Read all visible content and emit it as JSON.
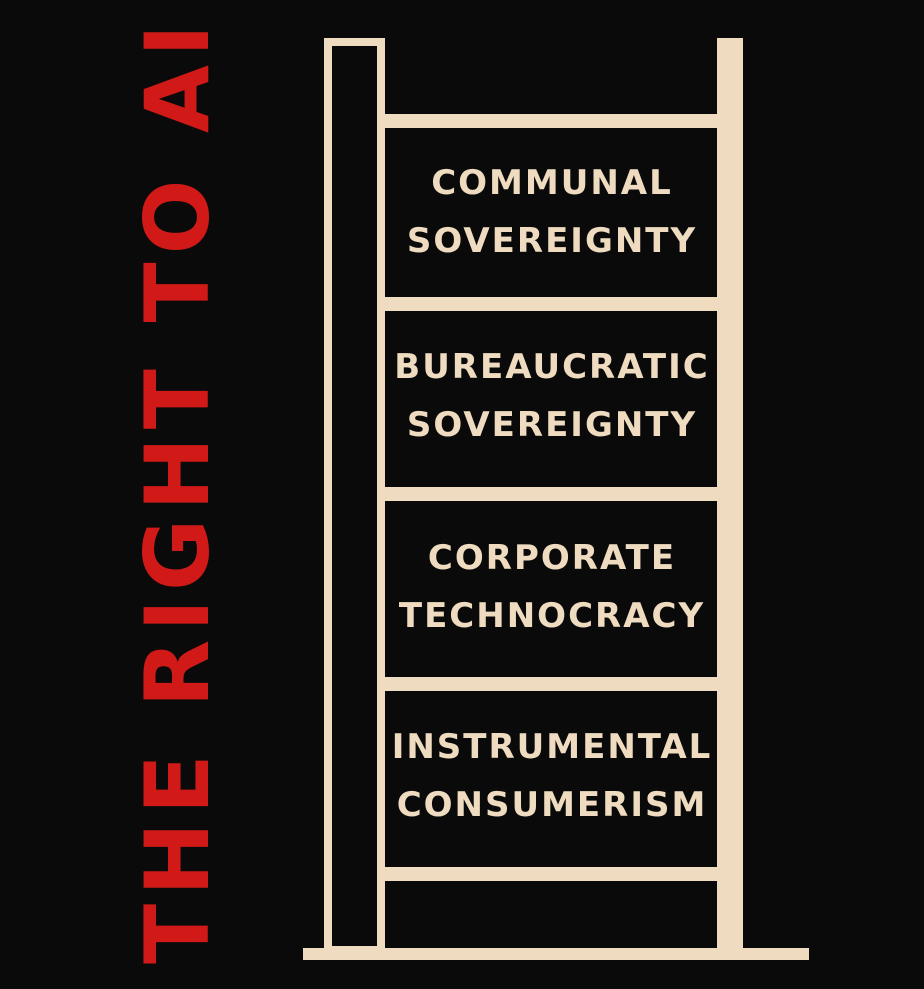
{
  "title": "THE RIGHT TO AI",
  "colors": {
    "background": "#0a0a0a",
    "frame": "#efdcc0",
    "title": "#d11a17",
    "text": "#efdcc0"
  },
  "ladder": {
    "rungs": [
      {
        "line1": "COMMUNAL",
        "line2": "SOVEREIGNTY"
      },
      {
        "line1": "BUREAUCRATIC",
        "line2": "SOVEREIGNTY"
      },
      {
        "line1": "CORPORATE",
        "line2": "TECHNOCRACY"
      },
      {
        "line1": "INSTRUMENTAL",
        "line2": "CONSUMERISM"
      }
    ]
  }
}
